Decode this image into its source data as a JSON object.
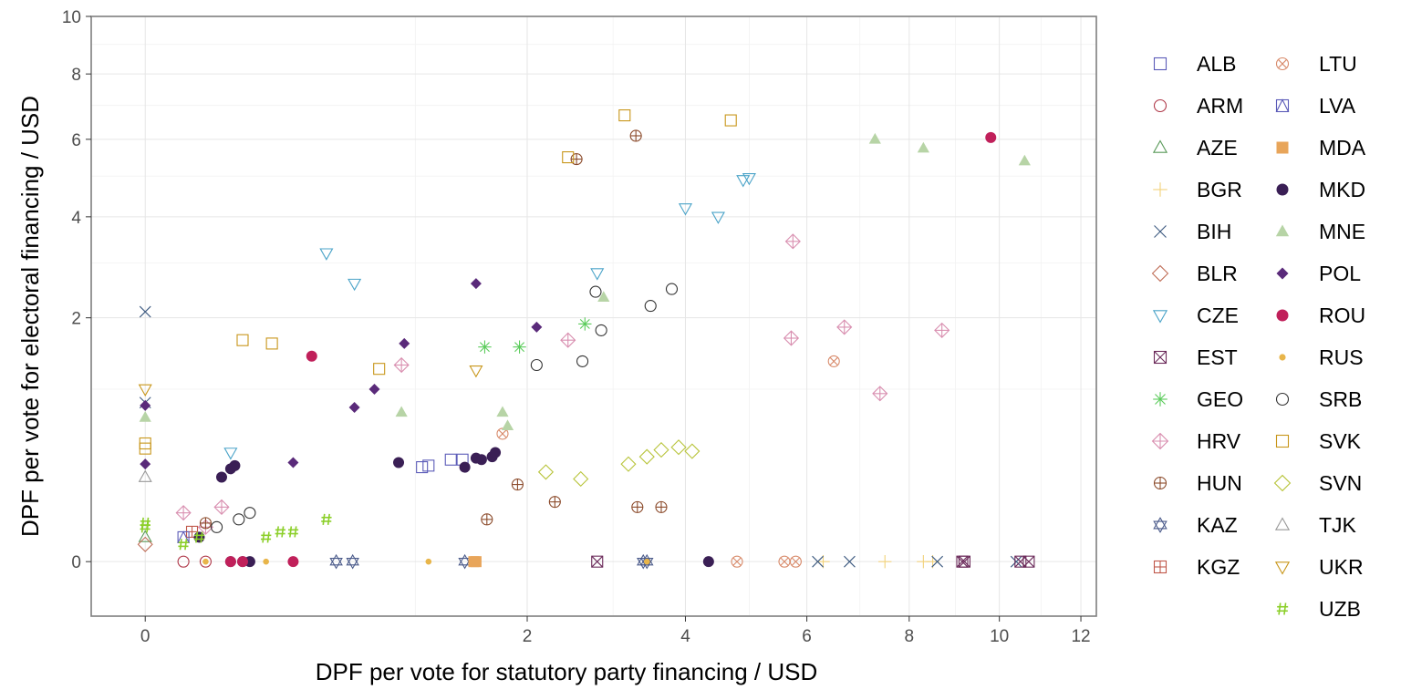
{
  "chart_data": {
    "type": "scatter",
    "xlabel": "DPF per vote for statutory party financing / USD",
    "ylabel": "DPF per vote for electoral financing / USD",
    "x_scale": "sqrt",
    "y_scale": "sqrt",
    "xlim": [
      -0.04,
      12.4
    ],
    "ylim": [
      -0.1,
      10
    ],
    "x_ticks": [
      0,
      2,
      4,
      6,
      8,
      10,
      12
    ],
    "y_ticks": [
      0,
      2,
      4,
      6,
      8,
      10
    ],
    "grid": true,
    "legend_position": "right",
    "legend_columns": 2,
    "series": [
      {
        "name": "ALB",
        "shape": "open-square",
        "color": "#5b5bb8",
        "points": [
          [
            1.05,
            0.3
          ],
          [
            1.1,
            0.31
          ],
          [
            1.28,
            0.35
          ],
          [
            1.38,
            0.35
          ]
        ]
      },
      {
        "name": "ARM",
        "shape": "open-circle",
        "color": "#b03a4a",
        "points": [
          [
            0.02,
            0
          ],
          [
            0.05,
            0
          ]
        ]
      },
      {
        "name": "AZE",
        "shape": "open-triangle",
        "color": "#5a9a5a",
        "points": [
          [
            0.0,
            0.02
          ]
        ]
      },
      {
        "name": "BGR",
        "shape": "plus",
        "color": "#f2d27a",
        "points": [
          [
            6.3,
            0
          ],
          [
            7.5,
            0
          ],
          [
            8.3,
            0
          ],
          [
            8.5,
            0
          ]
        ]
      },
      {
        "name": "BIH",
        "shape": "cross",
        "color": "#3d5a80",
        "points": [
          [
            0.0,
            2.1
          ],
          [
            0.0,
            0.85
          ],
          [
            6.2,
            0
          ],
          [
            6.8,
            0
          ],
          [
            8.6,
            0
          ],
          [
            10.4,
            0
          ]
        ]
      },
      {
        "name": "BLR",
        "shape": "open-diamond",
        "color": "#c0705a",
        "points": [
          [
            0.0,
            0.01
          ]
        ]
      },
      {
        "name": "CZE",
        "shape": "open-triangle-down",
        "color": "#4aa3c8",
        "points": [
          [
            0.45,
            3.2
          ],
          [
            0.6,
            2.6
          ],
          [
            0.1,
            0.4
          ],
          [
            2.8,
            2.8
          ],
          [
            4.0,
            4.2
          ],
          [
            4.5,
            4.0
          ],
          [
            4.9,
            4.9
          ],
          [
            5.0,
            4.95
          ]
        ]
      },
      {
        "name": "EST",
        "shape": "square-cross",
        "color": "#6b2a5a",
        "points": [
          [
            2.8,
            0
          ],
          [
            9.2,
            0
          ],
          [
            9.15,
            0
          ],
          [
            10.5,
            0
          ],
          [
            10.7,
            0
          ]
        ]
      },
      {
        "name": "GEO",
        "shape": "asterisk",
        "color": "#5acb5a",
        "points": [
          [
            1.58,
            1.55
          ],
          [
            1.92,
            1.55
          ],
          [
            2.65,
            1.9
          ]
        ]
      },
      {
        "name": "HRV",
        "shape": "diamond-plus",
        "color": "#d98fb0",
        "points": [
          [
            0.02,
            0.08
          ],
          [
            0.08,
            0.1
          ],
          [
            0.05,
            0.04
          ],
          [
            0.9,
            1.3
          ],
          [
            2.45,
            1.65
          ],
          [
            5.75,
            3.45
          ],
          [
            5.72,
            1.68
          ],
          [
            6.7,
            1.85
          ],
          [
            7.4,
            0.95
          ],
          [
            8.7,
            1.8
          ]
        ]
      },
      {
        "name": "HUN",
        "shape": "circle-plus",
        "color": "#8b4a2a",
        "points": [
          [
            0.05,
            0.05
          ],
          [
            1.6,
            0.06
          ],
          [
            1.9,
            0.2
          ],
          [
            2.3,
            0.12
          ],
          [
            2.55,
            5.45
          ],
          [
            3.3,
            6.1
          ],
          [
            3.32,
            0.1
          ],
          [
            3.65,
            0.1
          ]
        ]
      },
      {
        "name": "KAZ",
        "shape": "star-of-david",
        "color": "#4a5a8a",
        "points": [
          [
            0.5,
            0
          ],
          [
            0.59,
            0
          ],
          [
            1.4,
            0
          ],
          [
            3.4,
            0
          ],
          [
            3.45,
            0
          ]
        ]
      },
      {
        "name": "KGZ",
        "shape": "square-plus",
        "color": "#c0584a",
        "points": [
          [
            0.03,
            0.03
          ]
        ]
      },
      {
        "name": "LTU",
        "shape": "circle-cross",
        "color": "#d88a6a",
        "points": [
          [
            1.75,
            0.55
          ],
          [
            4.8,
            0
          ],
          [
            5.6,
            0
          ],
          [
            5.8,
            0
          ],
          [
            6.5,
            1.35
          ]
        ]
      },
      {
        "name": "LVA",
        "shape": "triangle-in-square",
        "color": "#5b5bb8",
        "points": [
          [
            0.02,
            0.02
          ]
        ]
      },
      {
        "name": "MDA",
        "shape": "filled-square",
        "color": "#e8a55a",
        "points": [
          [
            1.48,
            0
          ],
          [
            1.5,
            0
          ]
        ]
      },
      {
        "name": "MKD",
        "shape": "filled-circle",
        "color": "#3a1f55",
        "points": [
          [
            0.08,
            0.24
          ],
          [
            0.1,
            0.29
          ],
          [
            0.11,
            0.31
          ],
          [
            0.88,
            0.33
          ],
          [
            1.4,
            0.3
          ],
          [
            1.5,
            0.36
          ],
          [
            1.55,
            0.35
          ],
          [
            1.65,
            0.37
          ],
          [
            1.68,
            0.4
          ],
          [
            4.35,
            0
          ],
          [
            0.04,
            0.02
          ],
          [
            0.1,
            0
          ],
          [
            0.13,
            0
          ],
          [
            0.15,
            0
          ]
        ]
      },
      {
        "name": "MNE",
        "shape": "filled-triangle",
        "color": "#b7d4a6",
        "points": [
          [
            0.0,
            0.7
          ],
          [
            0.9,
            0.75
          ],
          [
            1.75,
            0.75
          ],
          [
            1.8,
            0.62
          ],
          [
            2.88,
            2.35
          ],
          [
            7.3,
            6.0
          ],
          [
            8.3,
            5.75
          ],
          [
            10.6,
            5.4
          ]
        ]
      },
      {
        "name": "POL",
        "shape": "filled-diamond",
        "color": "#5a2a7a",
        "points": [
          [
            0.0,
            0.82
          ],
          [
            0.0,
            0.32
          ],
          [
            0.3,
            0.33
          ],
          [
            0.6,
            0.8
          ],
          [
            0.72,
            1.0
          ],
          [
            0.92,
            1.6
          ],
          [
            1.5,
            2.6
          ],
          [
            2.1,
            1.85
          ]
        ]
      },
      {
        "name": "ROU",
        "shape": "filled-circle",
        "color": "#c0205a",
        "points": [
          [
            0.38,
            1.42
          ],
          [
            0.3,
            0
          ],
          [
            9.8,
            6.05
          ],
          [
            0.1,
            0
          ],
          [
            0.13,
            0
          ]
        ]
      },
      {
        "name": "RUS",
        "shape": "small-dot",
        "color": "#e8b54a",
        "points": [
          [
            0.2,
            0
          ],
          [
            1.1,
            0
          ],
          [
            3.45,
            0
          ],
          [
            0.05,
            0
          ]
        ]
      },
      {
        "name": "SRB",
        "shape": "open-circle",
        "color": "#333333",
        "points": [
          [
            0.12,
            0.06
          ],
          [
            0.15,
            0.08
          ],
          [
            0.07,
            0.04
          ],
          [
            2.1,
            1.3
          ],
          [
            2.62,
            1.35
          ],
          [
            2.78,
            2.45
          ],
          [
            2.85,
            1.8
          ],
          [
            3.5,
            2.2
          ],
          [
            3.8,
            2.5
          ]
        ]
      },
      {
        "name": "SVK",
        "shape": "open-square",
        "color": "#c8961a",
        "points": [
          [
            0.0,
            0.47
          ],
          [
            0.0,
            0.43
          ],
          [
            0.13,
            1.65
          ],
          [
            0.22,
            1.6
          ],
          [
            0.75,
            1.25
          ],
          [
            2.45,
            5.5
          ],
          [
            3.15,
            6.7
          ],
          [
            4.7,
            6.55
          ]
        ]
      },
      {
        "name": "SVN",
        "shape": "open-diamond",
        "color": "#b8c43a",
        "points": [
          [
            2.2,
            0.27
          ],
          [
            2.6,
            0.23
          ],
          [
            3.2,
            0.32
          ],
          [
            3.45,
            0.37
          ],
          [
            3.65,
            0.42
          ],
          [
            3.9,
            0.44
          ],
          [
            4.1,
            0.41
          ]
        ]
      },
      {
        "name": "TJK",
        "shape": "open-triangle",
        "color": "#999999",
        "points": [
          [
            0.0,
            0.24
          ]
        ]
      },
      {
        "name": "UKR",
        "shape": "open-triangle-down",
        "color": "#c8961a",
        "points": [
          [
            0.0,
            1.0
          ],
          [
            1.5,
            1.23
          ]
        ]
      },
      {
        "name": "UZB",
        "shape": "hash",
        "color": "#8ccf2a",
        "points": [
          [
            0.0,
            0.05
          ],
          [
            0.0,
            0.04
          ],
          [
            0.02,
            0.01
          ],
          [
            0.04,
            0.02
          ],
          [
            0.2,
            0.02
          ],
          [
            0.25,
            0.03
          ],
          [
            0.3,
            0.03
          ],
          [
            0.45,
            0.06
          ]
        ]
      }
    ]
  }
}
